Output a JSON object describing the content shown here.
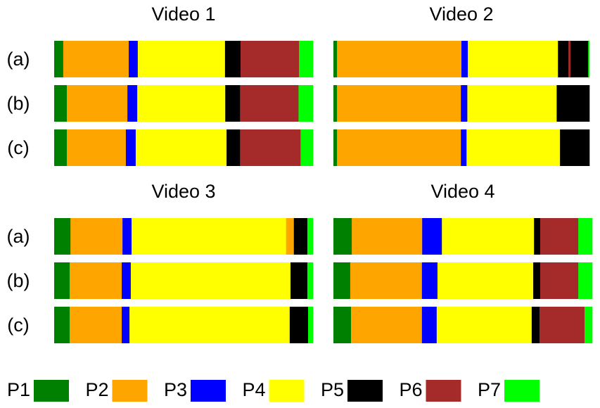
{
  "videos": [
    {
      "title": "Video 1",
      "rows": [
        {
          "label": "(a)",
          "segments": [
            {
              "phase": 0,
              "value": 3.5
            },
            {
              "phase": 1,
              "value": 25.3
            },
            {
              "phase": 2,
              "value": 3.5
            },
            {
              "phase": 3,
              "value": 33.7
            },
            {
              "phase": 4,
              "value": 6.0
            },
            {
              "phase": 5,
              "value": 22.6
            },
            {
              "phase": 6,
              "value": 5.4
            }
          ]
        },
        {
          "label": "(b)",
          "segments": [
            {
              "phase": 0,
              "value": 4.9
            },
            {
              "phase": 1,
              "value": 23.4
            },
            {
              "phase": 2,
              "value": 3.8
            },
            {
              "phase": 3,
              "value": 34.0
            },
            {
              "phase": 4,
              "value": 5.7
            },
            {
              "phase": 5,
              "value": 22.6
            },
            {
              "phase": 6,
              "value": 5.6
            }
          ]
        },
        {
          "label": "(c)",
          "segments": [
            {
              "phase": 0,
              "value": 4.9
            },
            {
              "phase": 1,
              "value": 22.8
            },
            {
              "phase": 2,
              "value": 3.8
            },
            {
              "phase": 3,
              "value": 35.1
            },
            {
              "phase": 4,
              "value": 5.2
            },
            {
              "phase": 5,
              "value": 23.4
            },
            {
              "phase": 6,
              "value": 4.8
            }
          ]
        }
      ]
    },
    {
      "title": "Video 2",
      "rows": [
        {
          "label": "(a)",
          "segments": [
            {
              "phase": 0,
              "value": 1.4
            },
            {
              "phase": 1,
              "value": 48.6
            },
            {
              "phase": 2,
              "value": 2.5
            },
            {
              "phase": 3,
              "value": 35.2
            },
            {
              "phase": 4,
              "value": 4.1
            },
            {
              "phase": 5,
              "value": 0.8
            },
            {
              "phase": 4,
              "value": 6.9
            },
            {
              "phase": 6,
              "value": 0.5
            }
          ]
        },
        {
          "label": "(b)",
          "segments": [
            {
              "phase": 0,
              "value": 1.4
            },
            {
              "phase": 1,
              "value": 48.4
            },
            {
              "phase": 2,
              "value": 2.5
            },
            {
              "phase": 3,
              "value": 34.9
            },
            {
              "phase": 4,
              "value": 12.8
            }
          ]
        },
        {
          "label": "(c)",
          "segments": [
            {
              "phase": 0,
              "value": 1.4
            },
            {
              "phase": 1,
              "value": 48.4
            },
            {
              "phase": 2,
              "value": 2.2
            },
            {
              "phase": 3,
              "value": 36.5
            },
            {
              "phase": 4,
              "value": 11.5
            }
          ]
        }
      ]
    },
    {
      "title": "Video 3",
      "rows": [
        {
          "label": "(a)",
          "segments": [
            {
              "phase": 0,
              "value": 6.3
            },
            {
              "phase": 1,
              "value": 20.1
            },
            {
              "phase": 2,
              "value": 3.5
            },
            {
              "phase": 3,
              "value": 59.7
            },
            {
              "phase": 1,
              "value": 3.0
            },
            {
              "phase": 4,
              "value": 5.2
            },
            {
              "phase": 6,
              "value": 2.2
            }
          ]
        },
        {
          "label": "(b)",
          "segments": [
            {
              "phase": 0,
              "value": 6.0
            },
            {
              "phase": 1,
              "value": 20.1
            },
            {
              "phase": 2,
              "value": 3.5
            },
            {
              "phase": 3,
              "value": 61.7
            },
            {
              "phase": 4,
              "value": 6.5
            },
            {
              "phase": 6,
              "value": 2.2
            }
          ]
        },
        {
          "label": "(c)",
          "segments": [
            {
              "phase": 0,
              "value": 6.0
            },
            {
              "phase": 1,
              "value": 20.1
            },
            {
              "phase": 2,
              "value": 3.0
            },
            {
              "phase": 3,
              "value": 61.9
            },
            {
              "phase": 4,
              "value": 7.1
            },
            {
              "phase": 6,
              "value": 1.9
            }
          ]
        }
      ]
    },
    {
      "title": "Video 4",
      "rows": [
        {
          "label": "(a)",
          "segments": [
            {
              "phase": 0,
              "value": 7.1
            },
            {
              "phase": 1,
              "value": 27.2
            },
            {
              "phase": 2,
              "value": 7.6
            },
            {
              "phase": 3,
              "value": 35.6
            },
            {
              "phase": 4,
              "value": 2.4
            },
            {
              "phase": 5,
              "value": 14.7
            },
            {
              "phase": 6,
              "value": 5.4
            }
          ]
        },
        {
          "label": "(b)",
          "segments": [
            {
              "phase": 0,
              "value": 6.5
            },
            {
              "phase": 1,
              "value": 27.7
            },
            {
              "phase": 2,
              "value": 6.0
            },
            {
              "phase": 3,
              "value": 37.0
            },
            {
              "phase": 4,
              "value": 2.7
            },
            {
              "phase": 5,
              "value": 14.7
            },
            {
              "phase": 6,
              "value": 5.4
            }
          ]
        },
        {
          "label": "(c)",
          "segments": [
            {
              "phase": 0,
              "value": 6.8
            },
            {
              "phase": 1,
              "value": 27.4
            },
            {
              "phase": 2,
              "value": 5.7
            },
            {
              "phase": 3,
              "value": 36.7
            },
            {
              "phase": 4,
              "value": 3.0
            },
            {
              "phase": 5,
              "value": 17.4
            },
            {
              "phase": 6,
              "value": 3.0
            }
          ]
        }
      ]
    }
  ],
  "legend": [
    {
      "label": "P1",
      "color": "#008000"
    },
    {
      "label": "P2",
      "color": "#ffa500"
    },
    {
      "label": "P3",
      "color": "#0000ff"
    },
    {
      "label": "P4",
      "color": "#ffff00"
    },
    {
      "label": "P5",
      "color": "#000000"
    },
    {
      "label": "P6",
      "color": "#a52a2a"
    },
    {
      "label": "P7",
      "color": "#00ff00"
    }
  ]
}
